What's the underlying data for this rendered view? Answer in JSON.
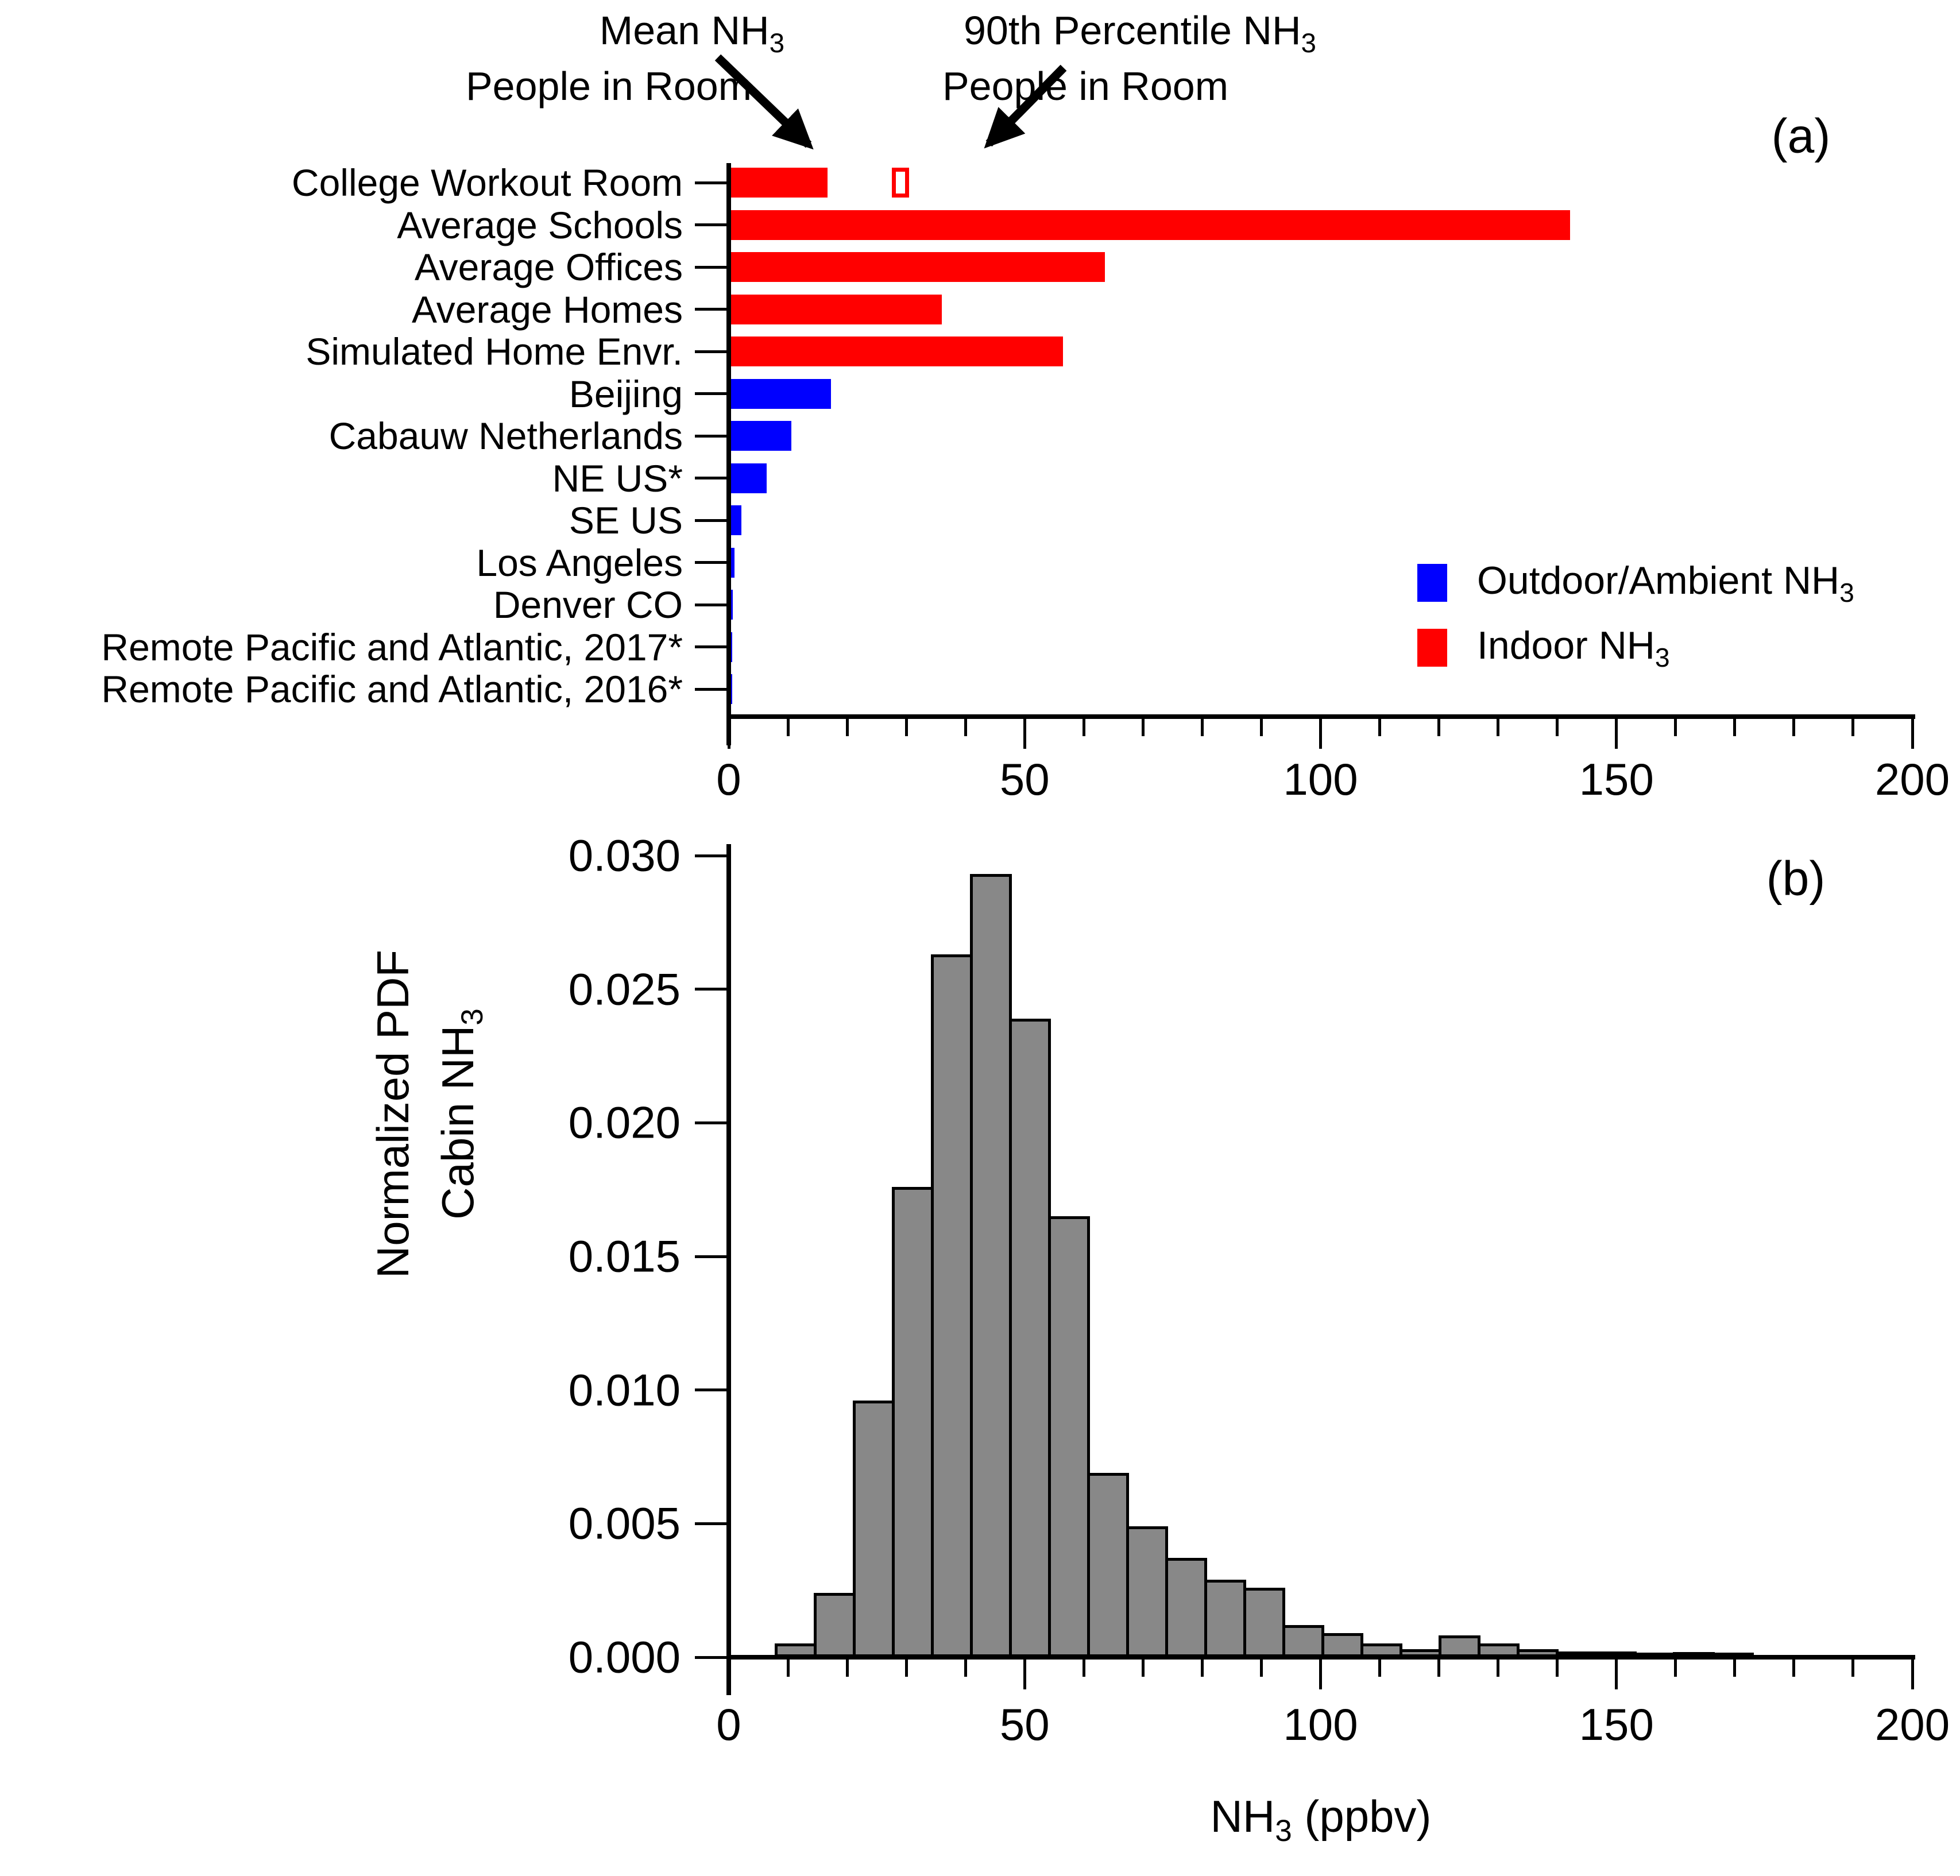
{
  "figure": {
    "panel_a_label": "(a)",
    "panel_b_label": "(b)",
    "sub3": "3"
  },
  "panel_a": {
    "annotations": {
      "mean_line1_prefix": "Mean NH",
      "mean_line2": "People in Room",
      "p90_line1_prefix": "90th Percentile NH",
      "p90_line2": "People in Room"
    },
    "legend": [
      {
        "label_prefix": "Outdoor/Ambient NH",
        "swatch_color": "#0000FF"
      },
      {
        "label_prefix": "Indoor NH",
        "swatch_color": "#FF0000"
      }
    ]
  },
  "panel_b": {
    "ylabel_line1": "Normalized PDF",
    "ylabel_line2_prefix": "Cabin NH",
    "xlabel_prefix": "NH",
    "xlabel_suffix": " (ppbv)"
  },
  "chart_data": [
    {
      "type": "bar",
      "panel": "a",
      "orientation": "horizontal",
      "title": "(a)",
      "xlabel": "NH3 (ppbv), shared axis",
      "xlim": [
        0,
        200
      ],
      "x_major_ticks": [
        0,
        50,
        100,
        150,
        200
      ],
      "x_minor_step": 10,
      "categories": [
        "College Workout Room",
        "Average Schools",
        "Average Offices",
        "Average Homes",
        "Simulated Home Envr.",
        "Beijing",
        "Cabauw Netherlands",
        "NE US*",
        "SE US",
        "Los Angeles",
        "Denver CO",
        "Remote Pacific and Atlantic, 2017*",
        "Remote Pacific and Atlantic, 2016*"
      ],
      "values": [
        16.3,
        141.8,
        63.2,
        35.6,
        56.1,
        16.9,
        10.2,
        6.0,
        1.7,
        0.6,
        0.25,
        0.12,
        0.1
      ],
      "bar_colors": [
        "#FF0000",
        "#FF0000",
        "#FF0000",
        "#FF0000",
        "#FF0000",
        "#0000FF",
        "#0000FF",
        "#0000FF",
        "#0000FF",
        "#0000FF",
        "#0000FF",
        "#0000FF",
        "#0000FF"
      ],
      "series_names": [
        "Mean NH3 People in Room"
      ],
      "marker_90th_percentile": {
        "category_index": 0,
        "value": 29,
        "color": "#FF0000",
        "label": "90th Percentile NH3 People in Room"
      },
      "legend_entries": [
        {
          "label": "Outdoor/Ambient NH3",
          "color": "#0000FF"
        },
        {
          "label": "Indoor NH3",
          "color": "#FF0000"
        }
      ]
    },
    {
      "type": "histogram",
      "panel": "b",
      "title": "(b)",
      "xlabel": "NH3 (ppbv)",
      "ylabel": "Normalized PDF Cabin NH3",
      "xlim": [
        0,
        200
      ],
      "ylim": [
        0,
        0.03
      ],
      "x_major_ticks": [
        0,
        50,
        100,
        150,
        200
      ],
      "x_minor_step": 10,
      "y_major_ticks": [
        0.0,
        0.005,
        0.01,
        0.015,
        0.02,
        0.025,
        0.03
      ],
      "y_tick_decimals": 3,
      "bar_color": "#888888",
      "bin_start": 8.0,
      "bin_width": 6.6,
      "values": [
        0.0004,
        0.0023,
        0.0095,
        0.0175,
        0.0262,
        0.0292,
        0.0238,
        0.0164,
        0.0068,
        0.0048,
        0.0036,
        0.0028,
        0.0025,
        0.0011,
        0.0008,
        0.0004,
        0.0002,
        0.0007,
        0.0004,
        0.0002,
        0.0001,
        0.0001,
        5e-05,
        8e-05,
        3e-05
      ]
    }
  ]
}
